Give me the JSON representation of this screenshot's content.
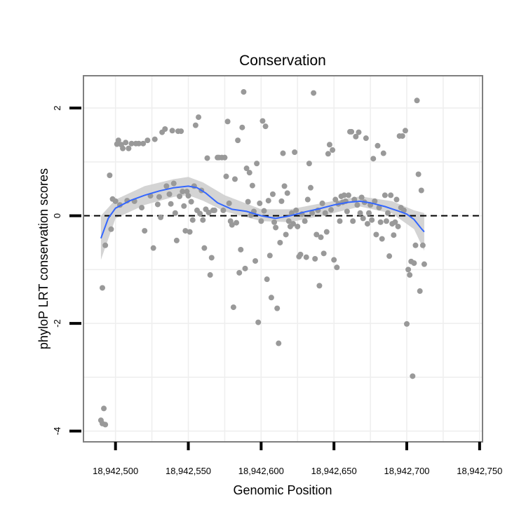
{
  "chart_data": {
    "type": "scatter",
    "title": "Conservation",
    "xlabel": "Genomic Position",
    "ylabel": "phyloP LRT conservation scores",
    "xlim": [
      18942478,
      18942752
    ],
    "ylim": [
      -4.2,
      2.6
    ],
    "x_ticks": [
      18942500,
      18942550,
      18942600,
      18942650,
      18942700,
      18942750
    ],
    "x_tick_labels": [
      "18,942,500",
      "18,942,550",
      "18,942,600",
      "18,942,650",
      "18,942,700",
      "18,942,750"
    ],
    "y_ticks": [
      -4,
      -2,
      0,
      2
    ],
    "y_tick_labels": [
      "-4",
      "-2",
      "0",
      "2"
    ],
    "reference_line": 0,
    "grid": true,
    "colors": {
      "points": "#999999",
      "smooth": "#3366ff",
      "band": "#cccccc",
      "reference": "#000000",
      "panel_border": "#7f7f7f",
      "grid": "#eeeeee"
    },
    "points": [
      {
        "x": 18942490,
        "y": -3.8
      },
      {
        "x": 18942491,
        "y": -3.86
      },
      {
        "x": 18942492,
        "y": -3.58
      },
      {
        "x": 18942493,
        "y": -3.88
      },
      {
        "x": 18942491,
        "y": -1.34
      },
      {
        "x": 18942493,
        "y": -0.55
      },
      {
        "x": 18942496,
        "y": 0.75
      },
      {
        "x": 18942497,
        "y": -0.25
      },
      {
        "x": 18942498,
        "y": 0.31
      },
      {
        "x": 18942500,
        "y": 0.27
      },
      {
        "x": 18942501,
        "y": 1.33
      },
      {
        "x": 18942502,
        "y": 1.4
      },
      {
        "x": 18942503,
        "y": 0.2
      },
      {
        "x": 18942504,
        "y": 1.32
      },
      {
        "x": 18942505,
        "y": 1.25
      },
      {
        "x": 18942507,
        "y": 1.36
      },
      {
        "x": 18942508,
        "y": 0.28
      },
      {
        "x": 18942509,
        "y": 1.25
      },
      {
        "x": 18942511,
        "y": 1.34
      },
      {
        "x": 18942513,
        "y": 0.27
      },
      {
        "x": 18942514,
        "y": 1.34
      },
      {
        "x": 18942516,
        "y": 1.34
      },
      {
        "x": 18942518,
        "y": 0.15
      },
      {
        "x": 18942519,
        "y": 1.34
      },
      {
        "x": 18942520,
        "y": -0.28
      },
      {
        "x": 18942522,
        "y": 1.4
      },
      {
        "x": 18942524,
        "y": 0.37
      },
      {
        "x": 18942526,
        "y": -0.6
      },
      {
        "x": 18942527,
        "y": 1.42
      },
      {
        "x": 18942529,
        "y": 0.21
      },
      {
        "x": 18942530,
        "y": 0.35
      },
      {
        "x": 18942531,
        "y": -0.03
      },
      {
        "x": 18942532,
        "y": 1.55
      },
      {
        "x": 18942534,
        "y": 1.61
      },
      {
        "x": 18942535,
        "y": 0.55
      },
      {
        "x": 18942537,
        "y": 0.4
      },
      {
        "x": 18942538,
        "y": 0.22
      },
      {
        "x": 18942539,
        "y": 1.58
      },
      {
        "x": 18942540,
        "y": 0.6
      },
      {
        "x": 18942541,
        "y": 0.05
      },
      {
        "x": 18942542,
        "y": -0.46
      },
      {
        "x": 18942543,
        "y": 1.57
      },
      {
        "x": 18942544,
        "y": 0.36
      },
      {
        "x": 18942545,
        "y": 1.57
      },
      {
        "x": 18942546,
        "y": 0.45
      },
      {
        "x": 18942547,
        "y": 0.18
      },
      {
        "x": 18942548,
        "y": -0.28
      },
      {
        "x": 18942549,
        "y": 0.45
      },
      {
        "x": 18942550,
        "y": 0.37
      },
      {
        "x": 18942551,
        "y": -0.3
      },
      {
        "x": 18942552,
        "y": 0.26
      },
      {
        "x": 18942553,
        "y": -0.08
      },
      {
        "x": 18942554,
        "y": 0.55
      },
      {
        "x": 18942555,
        "y": 1.68
      },
      {
        "x": 18942556,
        "y": 0.1
      },
      {
        "x": 18942557,
        "y": 1.83
      },
      {
        "x": 18942558,
        "y": 0.04
      },
      {
        "x": 18942559,
        "y": 0.47
      },
      {
        "x": 18942560,
        "y": -0.08
      },
      {
        "x": 18942561,
        "y": -0.6
      },
      {
        "x": 18942562,
        "y": 0.12
      },
      {
        "x": 18942563,
        "y": 1.07
      },
      {
        "x": 18942564,
        "y": 0.06
      },
      {
        "x": 18942565,
        "y": -1.1
      },
      {
        "x": 18942566,
        "y": -0.78
      },
      {
        "x": 18942567,
        "y": 0.1
      },
      {
        "x": 18942568,
        "y": 0.1
      },
      {
        "x": 18942570,
        "y": 1.08
      },
      {
        "x": 18942571,
        "y": 1.08
      },
      {
        "x": 18942573,
        "y": 1.08
      },
      {
        "x": 18942574,
        "y": 0.1
      },
      {
        "x": 18942575,
        "y": 1.08
      },
      {
        "x": 18942576,
        "y": 0.73
      },
      {
        "x": 18942577,
        "y": 1.75
      },
      {
        "x": 18942578,
        "y": 0.23
      },
      {
        "x": 18942579,
        "y": -0.1
      },
      {
        "x": 18942580,
        "y": -0.17
      },
      {
        "x": 18942581,
        "y": -1.7
      },
      {
        "x": 18942582,
        "y": 0.68
      },
      {
        "x": 18942583,
        "y": -0.13
      },
      {
        "x": 18942584,
        "y": 1.4
      },
      {
        "x": 18942585,
        "y": -1.06
      },
      {
        "x": 18942586,
        "y": -0.63
      },
      {
        "x": 18942587,
        "y": 1.64
      },
      {
        "x": 18942588,
        "y": 2.3
      },
      {
        "x": 18942589,
        "y": -0.98
      },
      {
        "x": 18942590,
        "y": 0.88
      },
      {
        "x": 18942591,
        "y": 0.26
      },
      {
        "x": 18942592,
        "y": 0.8
      },
      {
        "x": 18942593,
        "y": 0.01
      },
      {
        "x": 18942594,
        "y": 0.56
      },
      {
        "x": 18942595,
        "y": 0.08
      },
      {
        "x": 18942596,
        "y": -0.84
      },
      {
        "x": 18942597,
        "y": 0.97
      },
      {
        "x": 18942598,
        "y": -1.98
      },
      {
        "x": 18942599,
        "y": 0.23
      },
      {
        "x": 18942600,
        "y": -0.1
      },
      {
        "x": 18942601,
        "y": 1.76
      },
      {
        "x": 18942602,
        "y": 0.09
      },
      {
        "x": 18942603,
        "y": 1.66
      },
      {
        "x": 18942604,
        "y": -1.18
      },
      {
        "x": 18942605,
        "y": 0.28
      },
      {
        "x": 18942606,
        "y": -0.74
      },
      {
        "x": 18942607,
        "y": -1.52
      },
      {
        "x": 18942608,
        "y": 0.4
      },
      {
        "x": 18942609,
        "y": -0.12
      },
      {
        "x": 18942610,
        "y": -0.22
      },
      {
        "x": 18942611,
        "y": -1.72
      },
      {
        "x": 18942612,
        "y": -2.37
      },
      {
        "x": 18942613,
        "y": -0.5
      },
      {
        "x": 18942614,
        "y": 0.27
      },
      {
        "x": 18942615,
        "y": 1.16
      },
      {
        "x": 18942616,
        "y": 0.55
      },
      {
        "x": 18942617,
        "y": -0.35
      },
      {
        "x": 18942618,
        "y": 0.42
      },
      {
        "x": 18942619,
        "y": -0.1
      },
      {
        "x": 18942620,
        "y": -0.2
      },
      {
        "x": 18942621,
        "y": 0.05
      },
      {
        "x": 18942622,
        "y": -0.15
      },
      {
        "x": 18942623,
        "y": 1.18
      },
      {
        "x": 18942624,
        "y": 0.1
      },
      {
        "x": 18942625,
        "y": -0.2
      },
      {
        "x": 18942626,
        "y": -0.76
      },
      {
        "x": 18942627,
        "y": -0.72
      },
      {
        "x": 18942628,
        "y": 0.03
      },
      {
        "x": 18942630,
        "y": -0.1
      },
      {
        "x": 18942631,
        "y": -0.77
      },
      {
        "x": 18942632,
        "y": 0.3
      },
      {
        "x": 18942633,
        "y": 0.97
      },
      {
        "x": 18942634,
        "y": 0.52
      },
      {
        "x": 18942635,
        "y": 0.05
      },
      {
        "x": 18942636,
        "y": 2.28
      },
      {
        "x": 18942637,
        "y": -0.8
      },
      {
        "x": 18942638,
        "y": -0.35
      },
      {
        "x": 18942639,
        "y": 0.1
      },
      {
        "x": 18942640,
        "y": -1.3
      },
      {
        "x": 18942641,
        "y": -0.4
      },
      {
        "x": 18942642,
        "y": 0.23
      },
      {
        "x": 18942643,
        "y": -0.7
      },
      {
        "x": 18942644,
        "y": 0.05
      },
      {
        "x": 18942645,
        "y": -0.3
      },
      {
        "x": 18942646,
        "y": 1.15
      },
      {
        "x": 18942647,
        "y": 1.32
      },
      {
        "x": 18942648,
        "y": 0.11
      },
      {
        "x": 18942649,
        "y": 1.22
      },
      {
        "x": 18942650,
        "y": -0.82
      },
      {
        "x": 18942651,
        "y": 0.3
      },
      {
        "x": 18942652,
        "y": -0.96
      },
      {
        "x": 18942653,
        "y": 0.22
      },
      {
        "x": 18942654,
        "y": -0.1
      },
      {
        "x": 18942655,
        "y": 0.36
      },
      {
        "x": 18942656,
        "y": 0.25
      },
      {
        "x": 18942657,
        "y": 0.38
      },
      {
        "x": 18942658,
        "y": 0.27
      },
      {
        "x": 18942659,
        "y": 0.08
      },
      {
        "x": 18942660,
        "y": 0.38
      },
      {
        "x": 18942661,
        "y": 1.56
      },
      {
        "x": 18942662,
        "y": 1.56
      },
      {
        "x": 18942663,
        "y": -0.1
      },
      {
        "x": 18942664,
        "y": 0.3
      },
      {
        "x": 18942665,
        "y": 1.47
      },
      {
        "x": 18942666,
        "y": 0.2
      },
      {
        "x": 18942667,
        "y": 1.55
      },
      {
        "x": 18942668,
        "y": 0.05
      },
      {
        "x": 18942669,
        "y": 0.34
      },
      {
        "x": 18942670,
        "y": -0.05
      },
      {
        "x": 18942671,
        "y": 0.25
      },
      {
        "x": 18942672,
        "y": 1.44
      },
      {
        "x": 18942673,
        "y": -0.15
      },
      {
        "x": 18942674,
        "y": 0.05
      },
      {
        "x": 18942675,
        "y": 0.2
      },
      {
        "x": 18942676,
        "y": -0.08
      },
      {
        "x": 18942677,
        "y": 1.06
      },
      {
        "x": 18942678,
        "y": 0.27
      },
      {
        "x": 18942679,
        "y": -0.35
      },
      {
        "x": 18942680,
        "y": 1.3
      },
      {
        "x": 18942681,
        "y": 0.15
      },
      {
        "x": 18942682,
        "y": -0.12
      },
      {
        "x": 18942683,
        "y": -0.43
      },
      {
        "x": 18942684,
        "y": 1.16
      },
      {
        "x": 18942685,
        "y": 0.38
      },
      {
        "x": 18942686,
        "y": -0.1
      },
      {
        "x": 18942687,
        "y": 0.05
      },
      {
        "x": 18942688,
        "y": -0.75
      },
      {
        "x": 18942689,
        "y": 0.38
      },
      {
        "x": 18942690,
        "y": -0.15
      },
      {
        "x": 18942691,
        "y": -0.36
      },
      {
        "x": 18942692,
        "y": -0.12
      },
      {
        "x": 18942693,
        "y": 0.3
      },
      {
        "x": 18942694,
        "y": -0.2
      },
      {
        "x": 18942695,
        "y": 1.48
      },
      {
        "x": 18942696,
        "y": 0.15
      },
      {
        "x": 18942697,
        "y": 1.48
      },
      {
        "x": 18942698,
        "y": 0.1
      },
      {
        "x": 18942699,
        "y": 1.58
      },
      {
        "x": 18942700,
        "y": -2.01
      },
      {
        "x": 18942701,
        "y": -1.0
      },
      {
        "x": 18942702,
        "y": -1.1
      },
      {
        "x": 18942703,
        "y": -0.85
      },
      {
        "x": 18942704,
        "y": -2.98
      },
      {
        "x": 18942705,
        "y": -0.88
      },
      {
        "x": 18942706,
        "y": -0.55
      },
      {
        "x": 18942707,
        "y": 2.14
      },
      {
        "x": 18942708,
        "y": 0.77
      },
      {
        "x": 18942709,
        "y": -1.4
      },
      {
        "x": 18942710,
        "y": 0.47
      },
      {
        "x": 18942711,
        "y": -0.55
      },
      {
        "x": 18942712,
        "y": -0.9
      }
    ],
    "smooth_line": [
      {
        "x": 18942490,
        "y": -0.42
      },
      {
        "x": 18942495,
        "y": -0.05
      },
      {
        "x": 18942500,
        "y": 0.14
      },
      {
        "x": 18942510,
        "y": 0.28
      },
      {
        "x": 18942520,
        "y": 0.38
      },
      {
        "x": 18942530,
        "y": 0.46
      },
      {
        "x": 18942540,
        "y": 0.52
      },
      {
        "x": 18942550,
        "y": 0.55
      },
      {
        "x": 18942556,
        "y": 0.52
      },
      {
        "x": 18942562,
        "y": 0.42
      },
      {
        "x": 18942570,
        "y": 0.24
      },
      {
        "x": 18942580,
        "y": 0.12
      },
      {
        "x": 18942590,
        "y": 0.08
      },
      {
        "x": 18942600,
        "y": 0.0
      },
      {
        "x": 18942610,
        "y": -0.05
      },
      {
        "x": 18942620,
        "y": 0.0
      },
      {
        "x": 18942630,
        "y": 0.07
      },
      {
        "x": 18942640,
        "y": 0.13
      },
      {
        "x": 18942650,
        "y": 0.2
      },
      {
        "x": 18942660,
        "y": 0.25
      },
      {
        "x": 18942668,
        "y": 0.27
      },
      {
        "x": 18942675,
        "y": 0.24
      },
      {
        "x": 18942685,
        "y": 0.17
      },
      {
        "x": 18942695,
        "y": 0.08
      },
      {
        "x": 18942700,
        "y": 0.03
      },
      {
        "x": 18942705,
        "y": -0.07
      },
      {
        "x": 18942710,
        "y": -0.24
      },
      {
        "x": 18942712,
        "y": -0.3
      }
    ],
    "confidence_band": {
      "upper": [
        {
          "x": 18942490,
          "y": 0.0
        },
        {
          "x": 18942500,
          "y": 0.3
        },
        {
          "x": 18942520,
          "y": 0.55
        },
        {
          "x": 18942540,
          "y": 0.68
        },
        {
          "x": 18942550,
          "y": 0.72
        },
        {
          "x": 18942560,
          "y": 0.62
        },
        {
          "x": 18942575,
          "y": 0.38
        },
        {
          "x": 18942600,
          "y": 0.12
        },
        {
          "x": 18942620,
          "y": 0.12
        },
        {
          "x": 18942645,
          "y": 0.25
        },
        {
          "x": 18942668,
          "y": 0.36
        },
        {
          "x": 18942690,
          "y": 0.27
        },
        {
          "x": 18942705,
          "y": 0.1
        },
        {
          "x": 18942712,
          "y": 0.05
        }
      ],
      "lower": [
        {
          "x": 18942490,
          "y": -0.82
        },
        {
          "x": 18942500,
          "y": -0.05
        },
        {
          "x": 18942520,
          "y": 0.2
        },
        {
          "x": 18942540,
          "y": 0.35
        },
        {
          "x": 18942550,
          "y": 0.38
        },
        {
          "x": 18942560,
          "y": 0.28
        },
        {
          "x": 18942575,
          "y": 0.08
        },
        {
          "x": 18942600,
          "y": -0.1
        },
        {
          "x": 18942620,
          "y": -0.12
        },
        {
          "x": 18942645,
          "y": 0.02
        },
        {
          "x": 18942668,
          "y": 0.17
        },
        {
          "x": 18942690,
          "y": 0.04
        },
        {
          "x": 18942705,
          "y": -0.25
        },
        {
          "x": 18942712,
          "y": -0.65
        }
      ]
    }
  }
}
